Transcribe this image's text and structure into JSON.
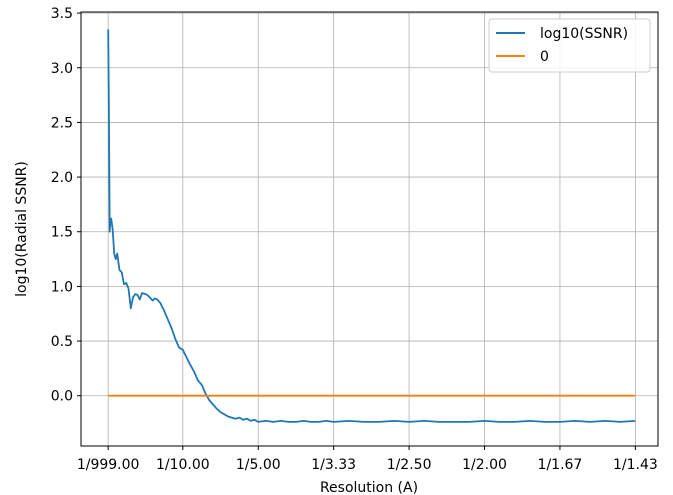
{
  "chart_data": {
    "type": "line",
    "title": "",
    "xlabel": "Resolution (A)",
    "ylabel": "log10(Radial SSNR)",
    "xlim": [
      -0.035,
      0.73
    ],
    "ylim": [
      -0.46,
      3.51
    ],
    "grid": true,
    "legend_position": "top-right",
    "x_tick_values": [
      0.001,
      0.1,
      0.2,
      0.3,
      0.4,
      0.5,
      0.6,
      0.7
    ],
    "x_tick_labels": [
      "1/999.00",
      "1/10.00",
      "1/5.00",
      "1/3.33",
      "1/2.50",
      "1/2.00",
      "1/1.67",
      "1/1.43"
    ],
    "y_ticks": [
      0.0,
      0.5,
      1.0,
      1.5,
      2.0,
      2.5,
      3.0,
      3.5
    ],
    "y_tick_labels": [
      "0.0",
      "0.5",
      "1.0",
      "1.5",
      "2.0",
      "2.5",
      "3.0",
      "3.5"
    ],
    "series": [
      {
        "name": "log10(SSNR)",
        "color": "#1f77b4",
        "x": [
          0.001,
          0.002,
          0.003,
          0.004,
          0.005,
          0.007,
          0.009,
          0.011,
          0.013,
          0.016,
          0.019,
          0.022,
          0.025,
          0.028,
          0.031,
          0.034,
          0.037,
          0.04,
          0.043,
          0.046,
          0.05,
          0.053,
          0.056,
          0.06,
          0.063,
          0.066,
          0.07,
          0.075,
          0.08,
          0.085,
          0.09,
          0.095,
          0.1,
          0.105,
          0.11,
          0.115,
          0.12,
          0.125,
          0.13,
          0.135,
          0.14,
          0.145,
          0.15,
          0.155,
          0.16,
          0.165,
          0.17,
          0.175,
          0.18,
          0.185,
          0.19,
          0.195,
          0.2,
          0.21,
          0.22,
          0.23,
          0.24,
          0.25,
          0.26,
          0.27,
          0.28,
          0.29,
          0.3,
          0.32,
          0.34,
          0.36,
          0.38,
          0.4,
          0.42,
          0.44,
          0.46,
          0.48,
          0.5,
          0.52,
          0.54,
          0.56,
          0.58,
          0.6,
          0.62,
          0.64,
          0.66,
          0.68,
          0.7
        ],
        "y": [
          3.35,
          2.6,
          1.5,
          1.6,
          1.62,
          1.52,
          1.3,
          1.25,
          1.3,
          1.15,
          1.13,
          1.02,
          1.03,
          0.98,
          0.8,
          0.9,
          0.93,
          0.92,
          0.88,
          0.94,
          0.93,
          0.92,
          0.9,
          0.87,
          0.89,
          0.88,
          0.85,
          0.78,
          0.7,
          0.62,
          0.52,
          0.44,
          0.42,
          0.35,
          0.28,
          0.22,
          0.14,
          0.1,
          0.02,
          -0.04,
          -0.08,
          -0.12,
          -0.15,
          -0.17,
          -0.19,
          -0.2,
          -0.21,
          -0.2,
          -0.22,
          -0.21,
          -0.23,
          -0.22,
          -0.24,
          -0.23,
          -0.24,
          -0.23,
          -0.24,
          -0.24,
          -0.23,
          -0.24,
          -0.24,
          -0.23,
          -0.24,
          -0.23,
          -0.24,
          -0.24,
          -0.23,
          -0.24,
          -0.23,
          -0.24,
          -0.24,
          -0.24,
          -0.23,
          -0.24,
          -0.24,
          -0.23,
          -0.24,
          -0.24,
          -0.23,
          -0.24,
          -0.23,
          -0.24,
          -0.23
        ]
      },
      {
        "name": "0",
        "color": "#ff7f0e",
        "x": [
          0.001,
          0.7
        ],
        "y": [
          0,
          0
        ]
      }
    ]
  }
}
